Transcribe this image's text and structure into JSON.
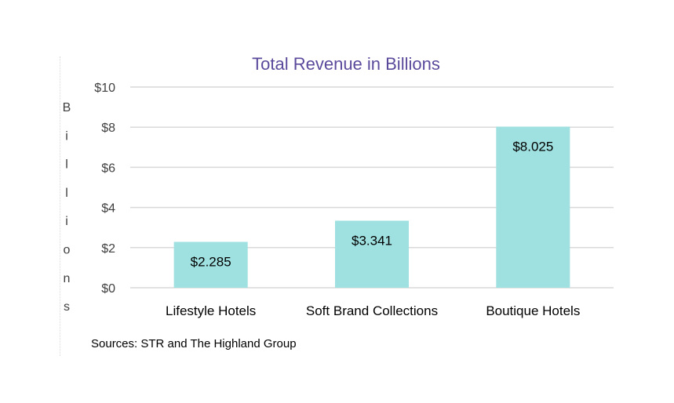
{
  "chart_data": {
    "type": "bar",
    "title": "Total Revenue in Billions",
    "ylabel": "Billions",
    "xlabel": "",
    "categories": [
      "Lifestyle Hotels",
      "Soft Brand Collections",
      "Boutique Hotels"
    ],
    "values": [
      2.285,
      3.341,
      8.025
    ],
    "data_labels": [
      "$2.285",
      "$3.341",
      "$8.025"
    ],
    "ylim": [
      0,
      10
    ],
    "yticks": [
      0,
      2,
      4,
      6,
      8,
      10
    ],
    "ytick_labels": [
      "$0",
      "$2",
      "$4",
      "$6",
      "$8",
      "$10"
    ],
    "grid": true,
    "legend": "none"
  },
  "source_note": "Sources: STR and The Highland Group",
  "colors": {
    "bar": "#9fe0e0",
    "title": "#5b4a9c",
    "grid": "#d9d9d9"
  }
}
